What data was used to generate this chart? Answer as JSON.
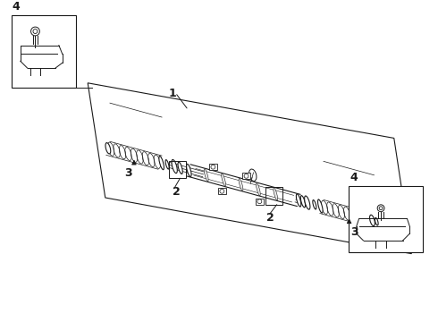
{
  "bg_color": "#ffffff",
  "line_color": "#1a1a1a",
  "fig_width": 4.9,
  "fig_height": 3.6,
  "dpi": 100,
  "labels": [
    "1",
    "2",
    "3",
    "4"
  ]
}
